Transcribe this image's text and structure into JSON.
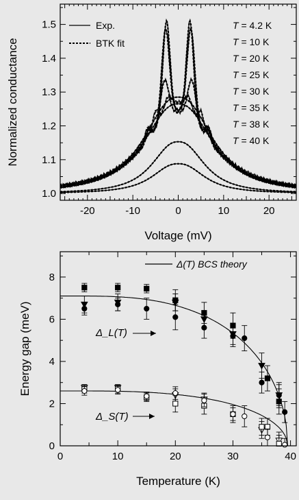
{
  "chart_data": [
    {
      "type": "line",
      "xlabel": "Voltage (mV)",
      "ylabel": "Normalized conductance",
      "xlim": [
        -26,
        26
      ],
      "ylim": [
        0.98,
        1.56
      ],
      "xticks": [
        -20,
        -10,
        0,
        10,
        20
      ],
      "yticks": [
        1.0,
        1.1,
        1.2,
        1.3,
        1.4,
        1.5
      ],
      "xtick_labels": [
        "-20",
        "-10",
        "0",
        "10",
        "20"
      ],
      "ytick_labels": [
        "1.0",
        "1.1",
        "1.2",
        "1.3",
        "1.4",
        "1.5"
      ],
      "legend": {
        "position": "top-left",
        "entries": [
          "Exp.",
          "BTK fit"
        ]
      },
      "temperatures": [
        "T = 4.2 K",
        "T = 10 K",
        "T = 20 K",
        "T = 25 K",
        "T = 30 K",
        "T = 35 K",
        "T = 38 K",
        "T = 40 K"
      ],
      "series": [
        {
          "T": 4.2,
          "zbc": 1.245,
          "peak_v": 2.6,
          "peak_h": 1.525,
          "dip_v": 6.8,
          "bg_w": 9.0
        },
        {
          "T": 10,
          "zbc": 1.245,
          "peak_v": 2.8,
          "peak_h": 1.505,
          "dip_v": 6.8,
          "bg_w": 9.0
        },
        {
          "T": 20,
          "zbc": 1.24,
          "peak_v": 3.0,
          "peak_h": 1.355,
          "dip_v": 6.5,
          "bg_w": 9.0
        },
        {
          "T": 25,
          "zbc": 1.27,
          "peak_v": 2.2,
          "peak_h": 1.3,
          "dip_v": 5.0,
          "bg_w": 8.8
        },
        {
          "T": 30,
          "zbc": 1.285,
          "peak_v": 0,
          "peak_h": 1.285,
          "dip_v": 0,
          "bg_w": 8.6
        },
        {
          "T": 35,
          "zbc": 1.265,
          "peak_v": 0,
          "peak_h": 1.265,
          "dip_v": 0,
          "bg_w": 8.6
        },
        {
          "T": 38,
          "zbc": 1.153,
          "peak_v": 0,
          "peak_h": 1.153,
          "dip_v": 0,
          "bg_w": 6.5
        },
        {
          "T": 40,
          "zbc": 1.088,
          "peak_v": 0,
          "peak_h": 1.088,
          "dip_v": 0,
          "bg_w": 6.5
        }
      ]
    },
    {
      "type": "scatter",
      "xlabel": "Temperature (K)",
      "ylabel": "Energy gap (meV)",
      "xlim": [
        0,
        41
      ],
      "ylim": [
        0,
        9.2
      ],
      "xticks": [
        0,
        10,
        20,
        30,
        40
      ],
      "yticks": [
        0,
        2,
        4,
        6,
        8
      ],
      "xtick_labels": [
        "0",
        "10",
        "20",
        "30",
        "40"
      ],
      "ytick_labels": [
        "0",
        "2",
        "4",
        "6",
        "8"
      ],
      "legend": {
        "position": "top-right",
        "entries": [
          "Δ(T) BCS theory"
        ]
      },
      "annotations": [
        "Δ_L(T)",
        "Δ_S(T)"
      ],
      "bcs_curves": [
        {
          "name": "Δ_L BCS",
          "delta0": 7.1,
          "tc": 39.5
        },
        {
          "name": "Δ_S BCS",
          "delta0": 2.6,
          "tc": 39.5
        }
      ],
      "series": [
        {
          "name": "Δ_L filled squares",
          "marker": "square-filled",
          "T": [
            4.2,
            10,
            15,
            20,
            25,
            30,
            36,
            38
          ],
          "value": [
            7.5,
            7.5,
            7.45,
            6.9,
            6.3,
            5.7,
            3.2,
            2.1
          ],
          "err": [
            0.2,
            0.2,
            0.2,
            0.5,
            0.5,
            0.6,
            0.6,
            0.6
          ]
        },
        {
          "name": "Δ_L filled down-triangles",
          "marker": "tri-down-filled",
          "T": [
            4.2,
            10,
            20,
            25,
            30,
            35,
            38
          ],
          "value": [
            6.7,
            6.8,
            6.8,
            6.0,
            5.3,
            3.8,
            2.4
          ],
          "err": [
            0.4,
            0.4,
            0.4,
            0.4,
            0.5,
            0.6,
            0.6
          ]
        },
        {
          "name": "Δ_L filled circles",
          "marker": "circle-filled",
          "T": [
            4.2,
            10,
            15,
            20,
            25,
            30,
            32,
            35,
            38,
            39
          ],
          "value": [
            6.5,
            6.7,
            6.5,
            6.1,
            5.6,
            5.2,
            5.1,
            3.0,
            2.4,
            1.6
          ],
          "err": [
            0.3,
            0.3,
            0.5,
            0.6,
            0.5,
            0.5,
            0.6,
            0.5,
            0.5,
            0.5
          ]
        },
        {
          "name": "Δ_S open down-triangles",
          "marker": "tri-down-open",
          "T": [
            4.2,
            10,
            20,
            25,
            35,
            38
          ],
          "value": [
            2.75,
            2.75,
            2.4,
            2.2,
            0.75,
            0.25
          ],
          "err": [
            0.15,
            0.15,
            0.3,
            0.3,
            0.4,
            0.4
          ]
        },
        {
          "name": "Δ_S open squares",
          "marker": "square-open",
          "T": [
            4.2,
            10,
            15,
            20,
            25,
            30,
            35,
            36,
            38
          ],
          "value": [
            2.7,
            2.7,
            2.3,
            2.0,
            1.9,
            1.5,
            0.9,
            0.9,
            0.1
          ],
          "err": [
            0.2,
            0.2,
            0.2,
            0.4,
            0.4,
            0.3,
            0.4,
            0.4,
            0.4
          ]
        },
        {
          "name": "Δ_S open circles",
          "marker": "circle-open",
          "T": [
            4.2,
            10,
            15,
            20,
            25,
            30,
            32,
            36,
            39
          ],
          "value": [
            2.6,
            2.65,
            2.35,
            2.5,
            2.15,
            1.5,
            1.4,
            0.4,
            0.05
          ],
          "err": [
            0.2,
            0.2,
            0.2,
            0.3,
            0.3,
            0.4,
            0.5,
            0.4,
            0.3
          ]
        }
      ]
    }
  ]
}
